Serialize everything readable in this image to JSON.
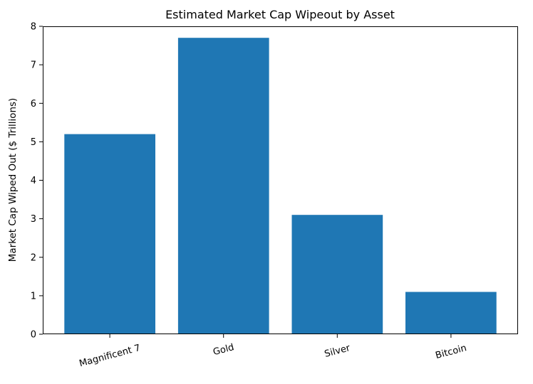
{
  "chart_data": {
    "type": "bar",
    "title": "Estimated Market Cap Wipeout by Asset",
    "categories": [
      "Magnificent 7",
      "Gold",
      "Silver",
      "Bitcoin"
    ],
    "values": [
      5.2,
      7.7,
      3.1,
      1.1
    ],
    "xlabel": "",
    "ylabel": "Market Cap Wiped Out ($ Trillions)",
    "ylim": [
      0,
      8
    ],
    "yticks": [
      0,
      1,
      2,
      3,
      4,
      5,
      6,
      7,
      8
    ],
    "bar_color": "#1f77b4",
    "spine_color": "#000000",
    "text_color": "#000000",
    "grid": false,
    "legend": "none",
    "x_tick_rotation_deg": 15
  }
}
